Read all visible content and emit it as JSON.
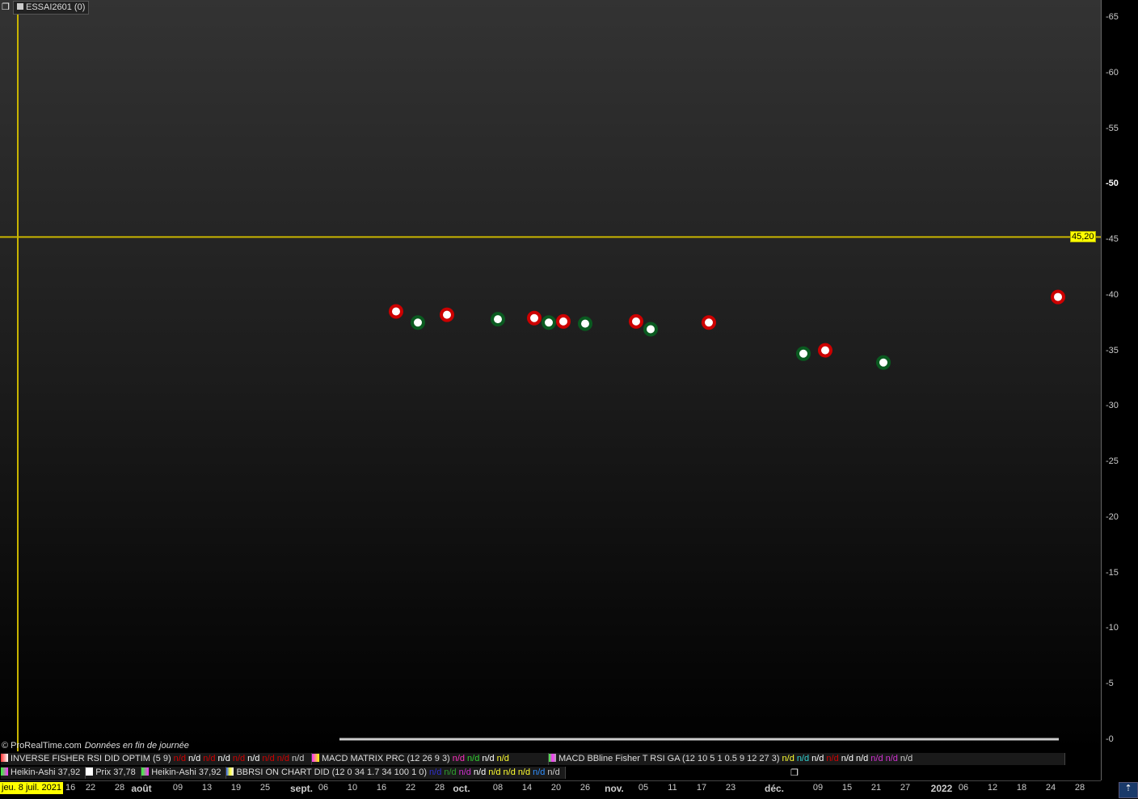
{
  "window": {
    "title": "ESSAI2601 (0)",
    "copyright": "© ProRealTime.com",
    "data_note": "Données en fin de journée"
  },
  "cursor": {
    "date_label": "jeu. 8 juil. 2021",
    "date": "2021-07-08",
    "price_label": "45,20",
    "price": 45.2,
    "color": "#c8b400"
  },
  "legend_row1": [
    {
      "name": "INVERSE FISHER RSI DID OPTIM (5 9)",
      "swatch": [
        "#ff3030",
        "#ffffff"
      ],
      "values": [
        {
          "t": "n/d",
          "c": "#d00000"
        },
        {
          "t": "n/d",
          "c": "#ffffff"
        },
        {
          "t": "n/d",
          "c": "#d00000"
        },
        {
          "t": "n/d",
          "c": "#ffffff"
        },
        {
          "t": "n/d",
          "c": "#d00000"
        },
        {
          "t": "n/d",
          "c": "#ffffff"
        },
        {
          "t": "n/d",
          "c": "#d00000"
        },
        {
          "t": "n/d",
          "c": "#d00000"
        },
        {
          "t": "n/d",
          "c": "#cccccc"
        }
      ]
    },
    {
      "name": "MACD MATRIX PRC (12 26 9 3)",
      "swatch": [
        "#ff30ff",
        "#ffff00"
      ],
      "values": [
        {
          "t": "n/d",
          "c": "#ff30c0"
        },
        {
          "t": "n/d",
          "c": "#30d030"
        },
        {
          "t": "n/d",
          "c": "#ffffff"
        },
        {
          "t": "n/d",
          "c": "#ffff30"
        }
      ]
    },
    {
      "name": "MACD  BBline  Fisher T RSI  GA (12 10 5 1 0.5 9 12 27 3)",
      "swatch": [
        "#30ff30",
        "#ff30ff",
        "#aaaaaa"
      ],
      "values": [
        {
          "t": "n/d",
          "c": "#ffff30"
        },
        {
          "t": "n/d",
          "c": "#30d0d0"
        },
        {
          "t": "n/d",
          "c": "#ffffff"
        },
        {
          "t": "n/d",
          "c": "#d00000"
        },
        {
          "t": "n/d",
          "c": "#ffffff"
        },
        {
          "t": "n/d",
          "c": "#ffffff"
        },
        {
          "t": "n/d",
          "c": "#d030d0"
        },
        {
          "t": "n/d",
          "c": "#d030d0"
        },
        {
          "t": "n/d",
          "c": "#cccccc"
        }
      ]
    }
  ],
  "legend_row2": [
    {
      "name": "Heikin-Ashi 37,92",
      "swatch": [
        "#30ff30",
        "#ff30ff"
      ]
    },
    {
      "name": "Prix 37,78",
      "swatch": [
        "#ffffff"
      ]
    },
    {
      "name": "Heikin-Ashi 37,92",
      "swatch": [
        "#30ff30",
        "#ff30ff"
      ]
    },
    {
      "name": "BBRSI ON CHART DID (12 0 34 1.7 34 100 1 0)",
      "swatch": [
        "#3060ff",
        "#ffff30",
        "#ffffff"
      ],
      "values": [
        {
          "t": "n/d",
          "c": "#3030d0"
        },
        {
          "t": "n/d",
          "c": "#30a030"
        },
        {
          "t": "n/d",
          "c": "#d030d0"
        },
        {
          "t": "n/d",
          "c": "#ffffff"
        },
        {
          "t": "n/d",
          "c": "#ffff30"
        },
        {
          "t": "n/d",
          "c": "#ffff30"
        },
        {
          "t": "n/d",
          "c": "#ffff30"
        },
        {
          "t": "n/d",
          "c": "#3090ff"
        },
        {
          "t": "n/d",
          "c": "#cccccc"
        }
      ]
    }
  ],
  "chart_data": {
    "type": "scatter",
    "ylim": [
      0,
      65
    ],
    "yticks": [
      0,
      5,
      10,
      15,
      20,
      25,
      30,
      35,
      40,
      45,
      50,
      55,
      60,
      65
    ],
    "grid": false,
    "series": [
      {
        "color": "#cc0000",
        "points": [
          [
            "2021-09-20",
            38.5
          ],
          [
            "2021-09-29",
            38.2
          ],
          [
            "2021-10-15",
            37.9
          ],
          [
            "2021-10-21",
            37.6
          ],
          [
            "2021-11-04",
            37.6
          ],
          [
            "2021-11-18",
            37.5
          ],
          [
            "2021-12-10",
            35.0
          ],
          [
            "2022-01-25",
            39.8
          ]
        ]
      },
      {
        "color": "#0a5a20",
        "points": [
          [
            "2021-09-23",
            37.5
          ],
          [
            "2021-10-08",
            37.8
          ],
          [
            "2021-10-19",
            37.5
          ],
          [
            "2021-10-26",
            37.4
          ],
          [
            "2021-11-08",
            36.9
          ],
          [
            "2021-12-07",
            34.7
          ],
          [
            "2021-12-22",
            33.9
          ]
        ]
      }
    ],
    "xticks": [
      {
        "d": "2021-07-16",
        "l": "16"
      },
      {
        "d": "2021-07-22",
        "l": "22"
      },
      {
        "d": "2021-07-28",
        "l": "28"
      },
      {
        "d": "2021-08-02",
        "l": "août",
        "b": true
      },
      {
        "d": "2021-08-09",
        "l": "09"
      },
      {
        "d": "2021-08-13",
        "l": "13"
      },
      {
        "d": "2021-08-19",
        "l": "19"
      },
      {
        "d": "2021-08-25",
        "l": "25"
      },
      {
        "d": "2021-09-01",
        "l": "sept.",
        "b": true
      },
      {
        "d": "2021-09-06",
        "l": "06"
      },
      {
        "d": "2021-09-10",
        "l": "10"
      },
      {
        "d": "2021-09-16",
        "l": "16"
      },
      {
        "d": "2021-09-22",
        "l": "22"
      },
      {
        "d": "2021-09-28",
        "l": "28"
      },
      {
        "d": "2021-10-01",
        "l": "oct.",
        "b": true
      },
      {
        "d": "2021-10-08",
        "l": "08"
      },
      {
        "d": "2021-10-14",
        "l": "14"
      },
      {
        "d": "2021-10-20",
        "l": "20"
      },
      {
        "d": "2021-10-26",
        "l": "26"
      },
      {
        "d": "2021-11-01",
        "l": "nov.",
        "b": true
      },
      {
        "d": "2021-11-05",
        "l": "05"
      },
      {
        "d": "2021-11-11",
        "l": "11"
      },
      {
        "d": "2021-11-17",
        "l": "17"
      },
      {
        "d": "2021-11-23",
        "l": "23"
      },
      {
        "d": "2021-12-01",
        "l": "déc.",
        "b": true
      },
      {
        "d": "2021-12-09",
        "l": "09"
      },
      {
        "d": "2021-12-15",
        "l": "15"
      },
      {
        "d": "2021-12-21",
        "l": "21"
      },
      {
        "d": "2021-12-27",
        "l": "27"
      },
      {
        "d": "2022-01-03",
        "l": "2022",
        "b": true
      },
      {
        "d": "2022-01-06",
        "l": "06"
      },
      {
        "d": "2022-01-12",
        "l": "12"
      },
      {
        "d": "2022-01-18",
        "l": "18"
      },
      {
        "d": "2022-01-24",
        "l": "24"
      },
      {
        "d": "2022-01-28",
        "l": "28"
      }
    ]
  }
}
